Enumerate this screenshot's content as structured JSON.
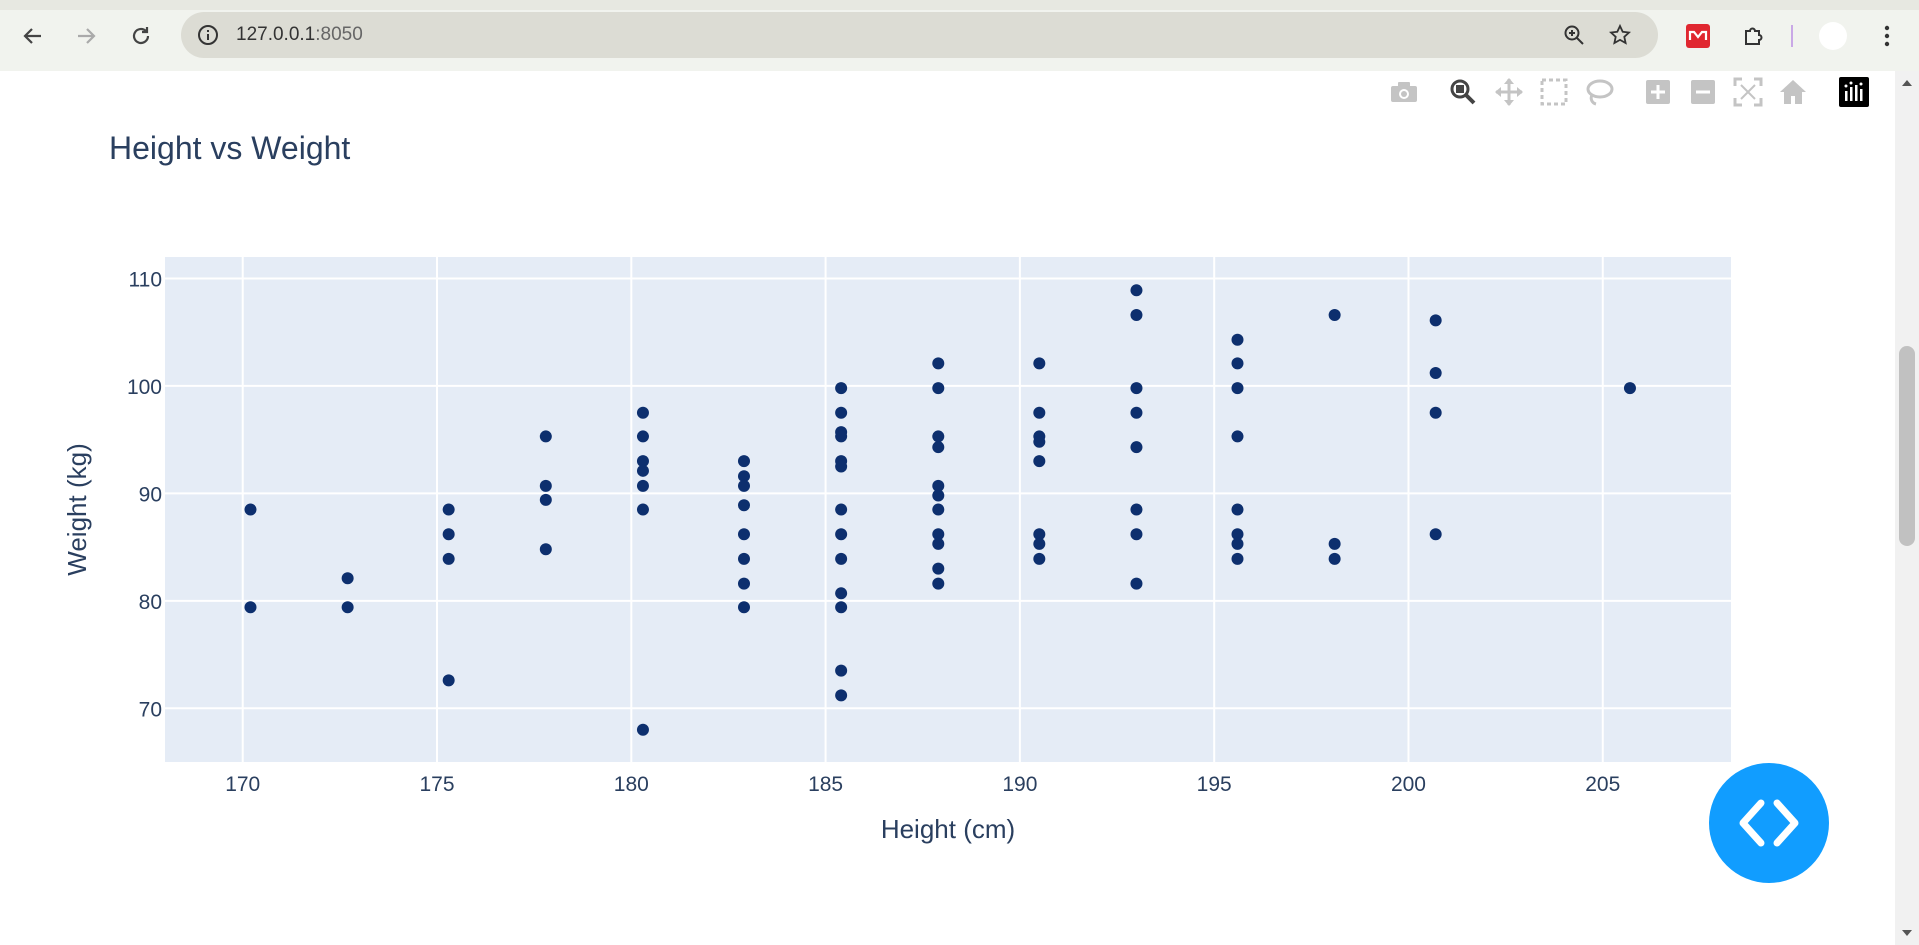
{
  "browser": {
    "url_host": "127.0.0.1",
    "url_port": ":8050"
  },
  "modebar": {
    "icons": [
      "camera-icon",
      "zoom-icon",
      "pan-icon",
      "box-select-icon",
      "lasso-icon",
      "zoom-in-icon",
      "zoom-out-icon",
      "autoscale-icon",
      "home-icon",
      "plotly-logo-icon"
    ]
  },
  "colors": {
    "plot_bg": "#e5ecf6",
    "marker": "#0d2f6e",
    "text": "#2a3f5f",
    "fab": "#119dff"
  },
  "chart_data": {
    "type": "scatter",
    "title": "Height vs Weight",
    "xlabel": "Height (cm)",
    "ylabel": "Weight (kg)",
    "xlim": [
      168,
      208.3
    ],
    "ylim": [
      65,
      112
    ],
    "xticks": [
      170,
      175,
      180,
      185,
      190,
      195,
      200,
      205
    ],
    "yticks": [
      70,
      80,
      90,
      100,
      110
    ],
    "grid": true,
    "points": [
      [
        170.2,
        88.5
      ],
      [
        170.2,
        79.4
      ],
      [
        172.7,
        82.1
      ],
      [
        172.7,
        79.4
      ],
      [
        175.3,
        88.5
      ],
      [
        175.3,
        86.2
      ],
      [
        175.3,
        83.9
      ],
      [
        175.3,
        72.6
      ],
      [
        177.8,
        95.3
      ],
      [
        177.8,
        90.7
      ],
      [
        177.8,
        89.4
      ],
      [
        177.8,
        84.8
      ],
      [
        180.3,
        97.5
      ],
      [
        180.3,
        95.3
      ],
      [
        180.3,
        93.0
      ],
      [
        180.3,
        92.1
      ],
      [
        180.3,
        90.7
      ],
      [
        180.3,
        88.5
      ],
      [
        180.3,
        68.0
      ],
      [
        182.9,
        93.0
      ],
      [
        182.9,
        91.6
      ],
      [
        182.9,
        90.7
      ],
      [
        182.9,
        88.9
      ],
      [
        182.9,
        86.2
      ],
      [
        182.9,
        83.9
      ],
      [
        182.9,
        81.6
      ],
      [
        182.9,
        79.4
      ],
      [
        185.4,
        99.8
      ],
      [
        185.4,
        97.5
      ],
      [
        185.4,
        95.7
      ],
      [
        185.4,
        95.3
      ],
      [
        185.4,
        93.0
      ],
      [
        185.4,
        92.5
      ],
      [
        185.4,
        88.5
      ],
      [
        185.4,
        86.2
      ],
      [
        185.4,
        83.9
      ],
      [
        185.4,
        80.7
      ],
      [
        185.4,
        79.4
      ],
      [
        185.4,
        73.5
      ],
      [
        185.4,
        71.2
      ],
      [
        187.9,
        102.1
      ],
      [
        187.9,
        99.8
      ],
      [
        187.9,
        95.3
      ],
      [
        187.9,
        94.3
      ],
      [
        187.9,
        90.7
      ],
      [
        187.9,
        89.8
      ],
      [
        187.9,
        88.5
      ],
      [
        187.9,
        86.2
      ],
      [
        187.9,
        85.3
      ],
      [
        187.9,
        83.0
      ],
      [
        187.9,
        81.6
      ],
      [
        190.5,
        102.1
      ],
      [
        190.5,
        97.5
      ],
      [
        190.5,
        95.3
      ],
      [
        190.5,
        94.8
      ],
      [
        190.5,
        93.0
      ],
      [
        190.5,
        86.2
      ],
      [
        190.5,
        85.3
      ],
      [
        190.5,
        83.9
      ],
      [
        193.0,
        108.9
      ],
      [
        193.0,
        106.6
      ],
      [
        193.0,
        99.8
      ],
      [
        193.0,
        97.5
      ],
      [
        193.0,
        94.3
      ],
      [
        193.0,
        88.5
      ],
      [
        193.0,
        86.2
      ],
      [
        193.0,
        81.6
      ],
      [
        195.6,
        104.3
      ],
      [
        195.6,
        102.1
      ],
      [
        195.6,
        99.8
      ],
      [
        195.6,
        95.3
      ],
      [
        195.6,
        88.5
      ],
      [
        195.6,
        86.2
      ],
      [
        195.6,
        85.3
      ],
      [
        195.6,
        83.9
      ],
      [
        198.1,
        106.6
      ],
      [
        198.1,
        85.3
      ],
      [
        198.1,
        83.9
      ],
      [
        200.7,
        106.1
      ],
      [
        200.7,
        101.2
      ],
      [
        200.7,
        97.5
      ],
      [
        200.7,
        86.2
      ],
      [
        205.7,
        99.8
      ]
    ]
  }
}
